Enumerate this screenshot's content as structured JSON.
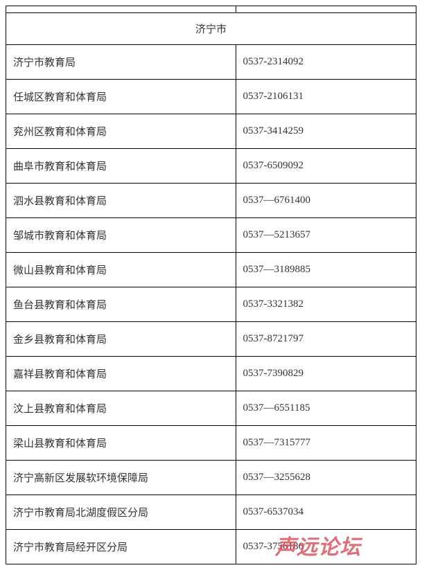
{
  "header": {
    "title": "济宁市"
  },
  "rows": [
    {
      "name": "济宁市教育局",
      "phone": "0537-2314092"
    },
    {
      "name": "任城区教育和体育局",
      "phone": "0537-2106131"
    },
    {
      "name": "兖州区教育和体育局",
      "phone": "0537-3414259"
    },
    {
      "name": "曲阜市教育和体育局",
      "phone": "0537-6509092"
    },
    {
      "name": "泗水县教育和体育局",
      "phone": "0537—6761400"
    },
    {
      "name": "邹城市教育和体育局",
      "phone": "0537—5213657"
    },
    {
      "name": "微山县教育和体育局",
      "phone": "0537—3189885"
    },
    {
      "name": "鱼台县教育和体育局",
      "phone": "0537-3321382"
    },
    {
      "name": "金乡县教育和体育局",
      "phone": "0537-8721797"
    },
    {
      "name": "嘉祥县教育和体育局",
      "phone": "0537-7390829"
    },
    {
      "name": "汶上县教育和体育局",
      "phone": "0537—6551185"
    },
    {
      "name": "梁山县教育和体育局",
      "phone": "0537—7315777"
    },
    {
      "name": "济宁高新区发展软环境保障局",
      "phone": "0537—3255628"
    },
    {
      "name": "济宁市教育局北湖度假区分局",
      "phone": "0537-6537034"
    },
    {
      "name": "济宁市教育局经开区分局",
      "phone": "0537-3756186"
    }
  ],
  "watermark": {
    "text": "声远论坛",
    "color": "#d94a55"
  },
  "styles": {
    "border_color": "#000000",
    "text_color": "#333333",
    "background_color": "#ffffff",
    "font_size_pt": 15,
    "name_col_width_pct": 56,
    "phone_col_width_pct": 44
  }
}
